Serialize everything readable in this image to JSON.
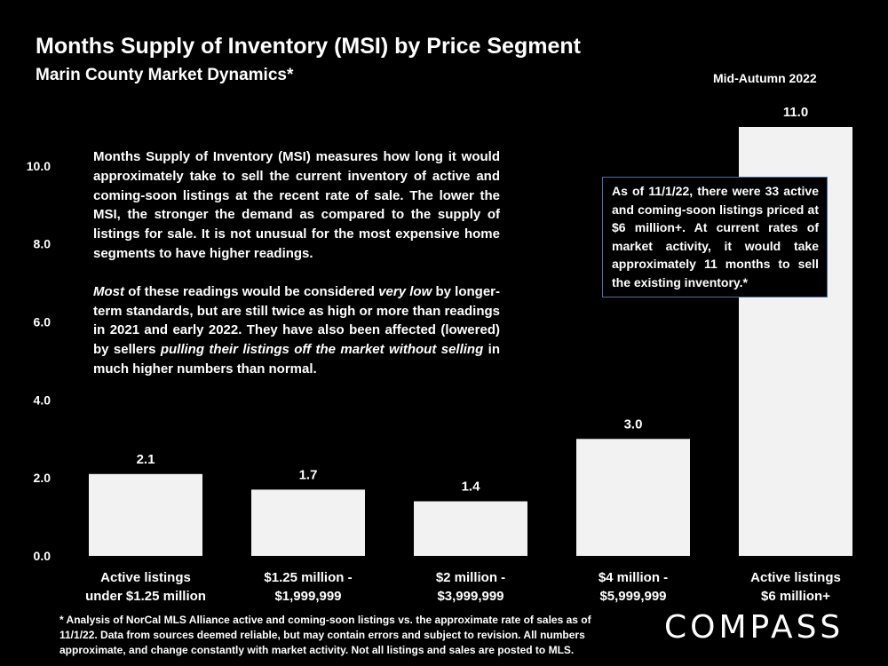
{
  "header": {
    "title": "Months Supply of Inventory (MSI) by Price Segment",
    "subtitle": "Marin County Market Dynamics*",
    "period": "Mid-Autumn 2022"
  },
  "chart_data": {
    "type": "bar",
    "title": "Months Supply of Inventory (MSI) by Price Segment",
    "categories": [
      [
        "Active listings",
        "under $1.25 million"
      ],
      [
        "$1.25 million -",
        "$1,999,999"
      ],
      [
        "$2 million -",
        "$3,999,999"
      ],
      [
        "$4 million -",
        "$5,999,999"
      ],
      [
        "Active listings",
        "$6 million+"
      ]
    ],
    "values": [
      2.1,
      1.7,
      1.4,
      3.0,
      11.0
    ],
    "value_labels": [
      "2.1",
      "1.7",
      "1.4",
      "3.0",
      "11.0"
    ],
    "yticks": [
      "0.0",
      "2.0",
      "4.0",
      "6.0",
      "8.0",
      "10.0"
    ],
    "ylim": [
      0,
      11.0
    ],
    "xlabel": "",
    "ylabel": "",
    "grid": false,
    "bar_color": "#f2f2f2"
  },
  "note": {
    "p1": "Months Supply of Inventory (MSI) measures how long it would approximately take to sell the current inventory of active and coming-soon listings at the recent rate of sale. The lower the MSI, the stronger the demand as compared to the supply of listings for sale. It is not unusual for the most expensive home segments to have higher readings.",
    "p2_parts": [
      "Most",
      " of these readings would be considered ",
      "very low",
      " by longer-term standards, but are still twice as high or more than readings in 2021 and early 2022. They have also been affected (lowered) by sellers ",
      "pulling their listings off the market without selling",
      " in much higher numbers than normal."
    ]
  },
  "callout": "As of 11/1/22, there were 33 active and coming-soon listings priced at $6 million+. At current rates of market activity, it would take approximately 11 months to sell the existing inventory.*",
  "footnote": "* Analysis of NorCal MLS Alliance active and coming-soon listings vs. the approximate rate of sales as of 11/1/22. Data from sources deemed reliable, but may contain errors and subject to revision. All numbers approximate, and change constantly with market activity. Not all listings and sales are posted to MLS.",
  "logo": "COMPASS"
}
